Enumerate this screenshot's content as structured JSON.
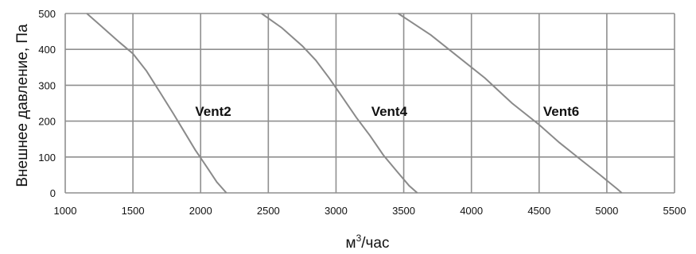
{
  "chart_data": {
    "type": "line",
    "xlabel_base": "м",
    "xlabel_sup": "3",
    "xlabel_rest": "/час",
    "ylabel": "Внешнее давление, Па",
    "xlim": [
      1000,
      5500
    ],
    "ylim": [
      0,
      500
    ],
    "x_ticks": [
      1000,
      1500,
      2000,
      2500,
      3000,
      3500,
      4000,
      4500,
      5000,
      5500
    ],
    "y_ticks": [
      0,
      100,
      200,
      300,
      400,
      500
    ],
    "grid": true,
    "series": [
      {
        "name": "Vent2",
        "label_at": [
          1960,
          215
        ],
        "points": [
          [
            1160,
            500
          ],
          [
            1280,
            460
          ],
          [
            1400,
            420
          ],
          [
            1500,
            388
          ],
          [
            1600,
            340
          ],
          [
            1700,
            280
          ],
          [
            1800,
            220
          ],
          [
            1880,
            170
          ],
          [
            1960,
            120
          ],
          [
            2050,
            70
          ],
          [
            2120,
            30
          ],
          [
            2190,
            0
          ]
        ]
      },
      {
        "name": "Vent4",
        "label_at": [
          3260,
          215
        ],
        "points": [
          [
            2450,
            500
          ],
          [
            2600,
            460
          ],
          [
            2750,
            410
          ],
          [
            2850,
            370
          ],
          [
            2950,
            320
          ],
          [
            3050,
            265
          ],
          [
            3150,
            210
          ],
          [
            3250,
            160
          ],
          [
            3350,
            105
          ],
          [
            3450,
            60
          ],
          [
            3540,
            20
          ],
          [
            3600,
            0
          ]
        ]
      },
      {
        "name": "Vent6",
        "label_at": [
          4530,
          215
        ],
        "points": [
          [
            3460,
            500
          ],
          [
            3700,
            440
          ],
          [
            3900,
            380
          ],
          [
            4100,
            320
          ],
          [
            4300,
            250
          ],
          [
            4500,
            190
          ],
          [
            4650,
            140
          ],
          [
            4800,
            95
          ],
          [
            4950,
            50
          ],
          [
            5080,
            10
          ],
          [
            5110,
            0
          ]
        ]
      }
    ]
  }
}
